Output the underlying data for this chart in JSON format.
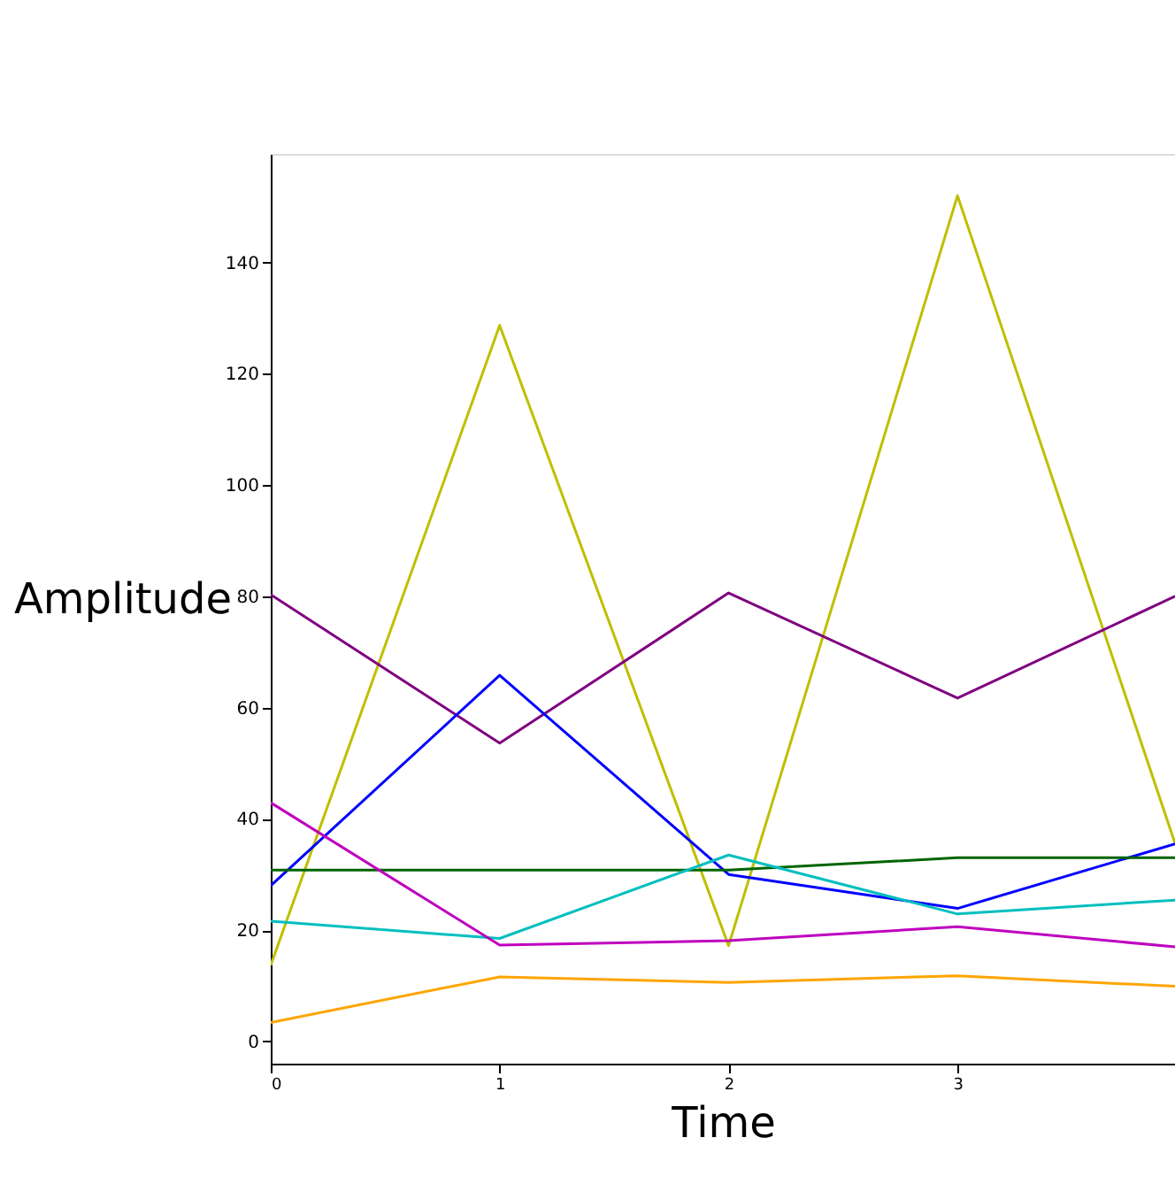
{
  "chart_data": {
    "type": "line",
    "xlabel": "Time",
    "ylabel": "Amplitude",
    "x": [
      0,
      1,
      2,
      3,
      3.95
    ],
    "series": [
      {
        "color": "#bfbf00",
        "values": [
          13.7,
          128.7,
          17.2,
          152.0,
          35.6
        ]
      },
      {
        "color": "#800080",
        "values": [
          80.3,
          53.6,
          80.6,
          61.7,
          80.0
        ]
      },
      {
        "color": "#0000ff",
        "values": [
          28.0,
          65.8,
          30.0,
          23.9,
          35.5
        ]
      },
      {
        "color": "#006400",
        "values": [
          30.8,
          30.8,
          30.8,
          33.0,
          33.0
        ]
      },
      {
        "color": "#00bfbf",
        "values": [
          21.6,
          18.5,
          33.5,
          22.9,
          25.4
        ]
      },
      {
        "color": "#bf00bf",
        "values": [
          42.9,
          17.3,
          18.1,
          20.6,
          17.0
        ]
      },
      {
        "color": "#ffa500",
        "values": [
          3.4,
          11.6,
          10.6,
          11.8,
          9.9
        ]
      }
    ],
    "xlim": [
      0,
      3.95
    ],
    "ylim": [
      -4,
      159.5
    ],
    "xticks": [
      0,
      1,
      2,
      3
    ],
    "yticks": [
      0,
      20,
      40,
      60,
      80,
      100,
      120,
      140
    ],
    "grid": false,
    "legend": false,
    "marker": "none",
    "line_style": "solid"
  }
}
